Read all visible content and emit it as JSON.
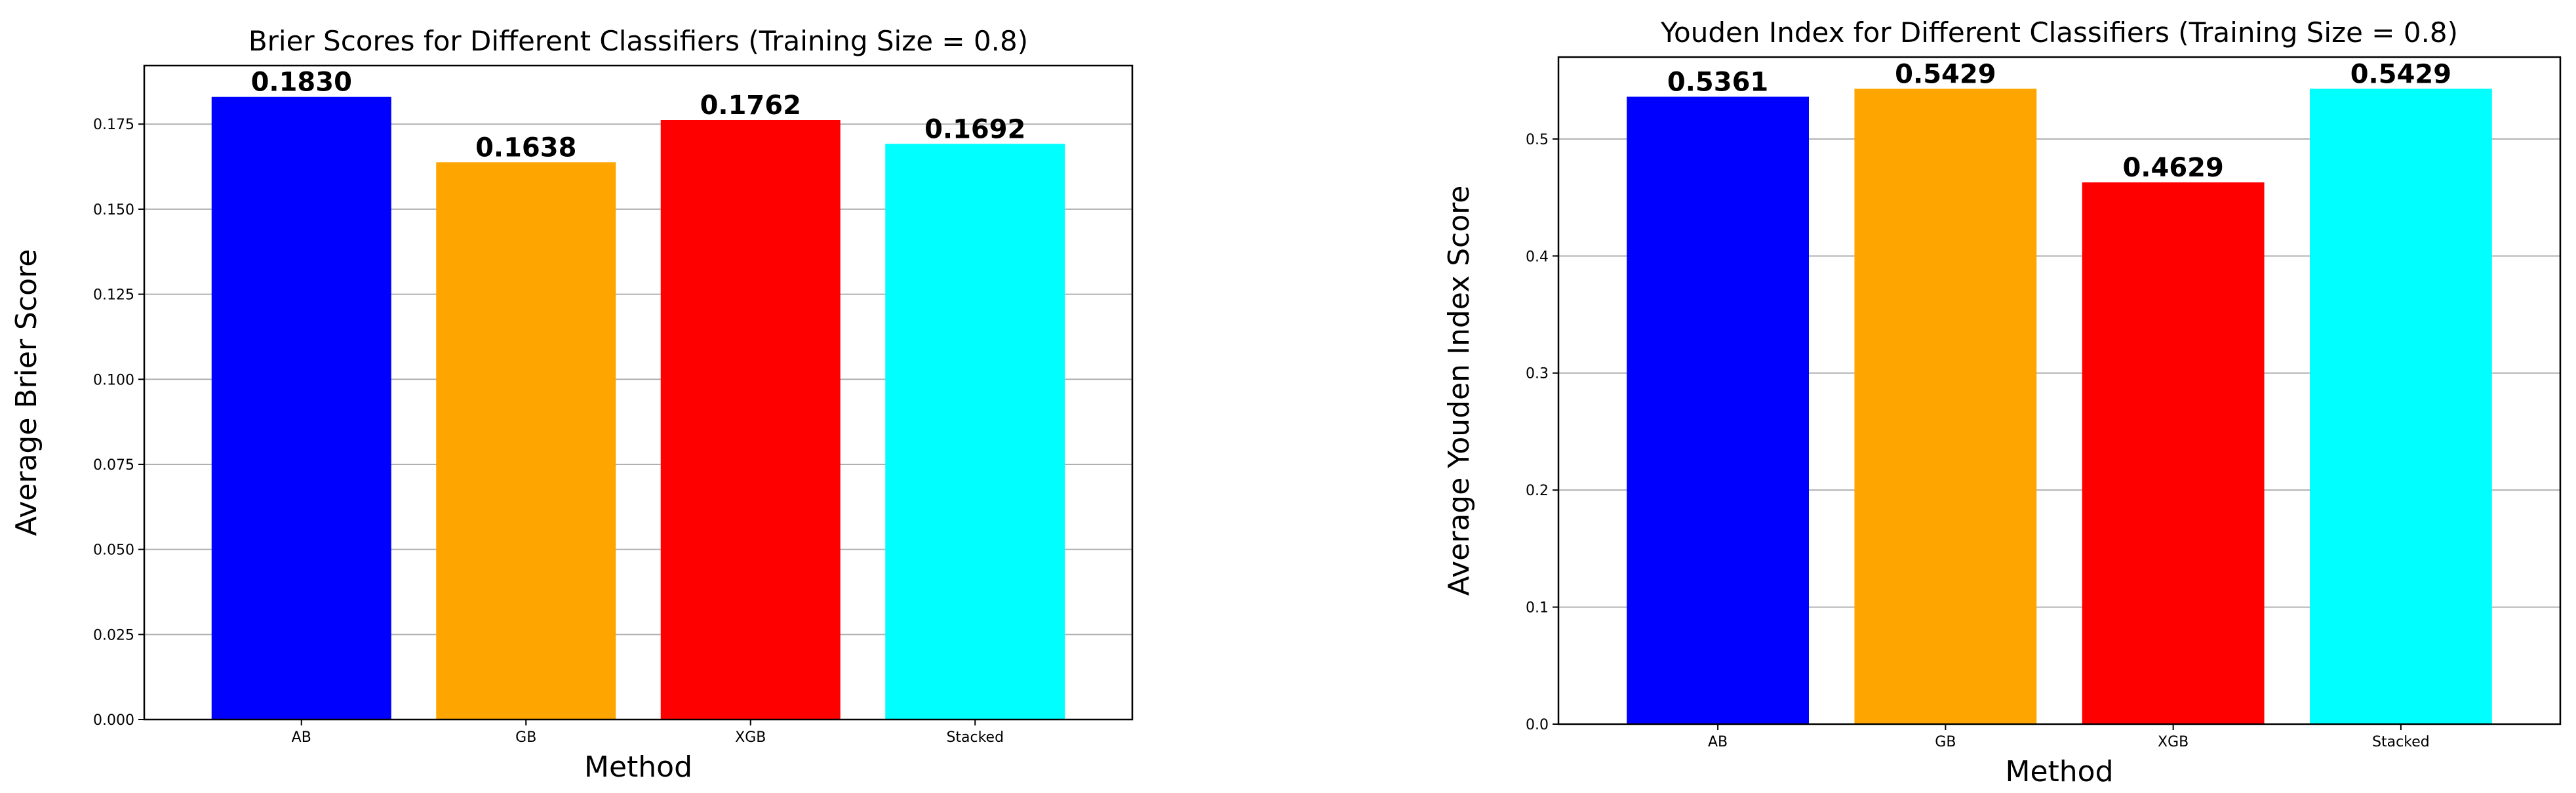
{
  "chart_data": [
    {
      "type": "bar",
      "title": "Brier Scores for Different Classifiers (Training Size = 0.8)",
      "xlabel": "Method",
      "ylabel": "Average Brier Score",
      "categories": [
        "AB",
        "GB",
        "XGB",
        "Stacked"
      ],
      "values": [
        0.183,
        0.1638,
        0.1762,
        0.1692
      ],
      "value_labels": [
        "0.1830",
        "0.1638",
        "0.1762",
        "0.1692"
      ],
      "colors": [
        "#0000ff",
        "#ffa500",
        "#ff0000",
        "#00ffff"
      ],
      "ylim": [
        0,
        0.1922
      ],
      "yticks": [
        0.0,
        0.025,
        0.05,
        0.075,
        0.1,
        0.125,
        0.15,
        0.175
      ],
      "ytick_labels": [
        "0.000",
        "0.025",
        "0.050",
        "0.075",
        "0.100",
        "0.125",
        "0.150",
        "0.175"
      ],
      "grid": true
    },
    {
      "type": "bar",
      "title": "Youden Index for Different Classifiers (Training Size = 0.8)",
      "xlabel": "Method",
      "ylabel": "Average Youden Index Score",
      "categories": [
        "AB",
        "GB",
        "XGB",
        "Stacked"
      ],
      "values": [
        0.5361,
        0.5429,
        0.4629,
        0.5429
      ],
      "value_labels": [
        "0.5361",
        "0.5429",
        "0.4629",
        "0.5429"
      ],
      "colors": [
        "#0000ff",
        "#ffa500",
        "#ff0000",
        "#00ffff"
      ],
      "ylim": [
        0,
        0.57
      ],
      "yticks": [
        0.0,
        0.1,
        0.2,
        0.3,
        0.4,
        0.5
      ],
      "ytick_labels": [
        "0.0",
        "0.1",
        "0.2",
        "0.3",
        "0.4",
        "0.5"
      ],
      "grid": true
    }
  ]
}
